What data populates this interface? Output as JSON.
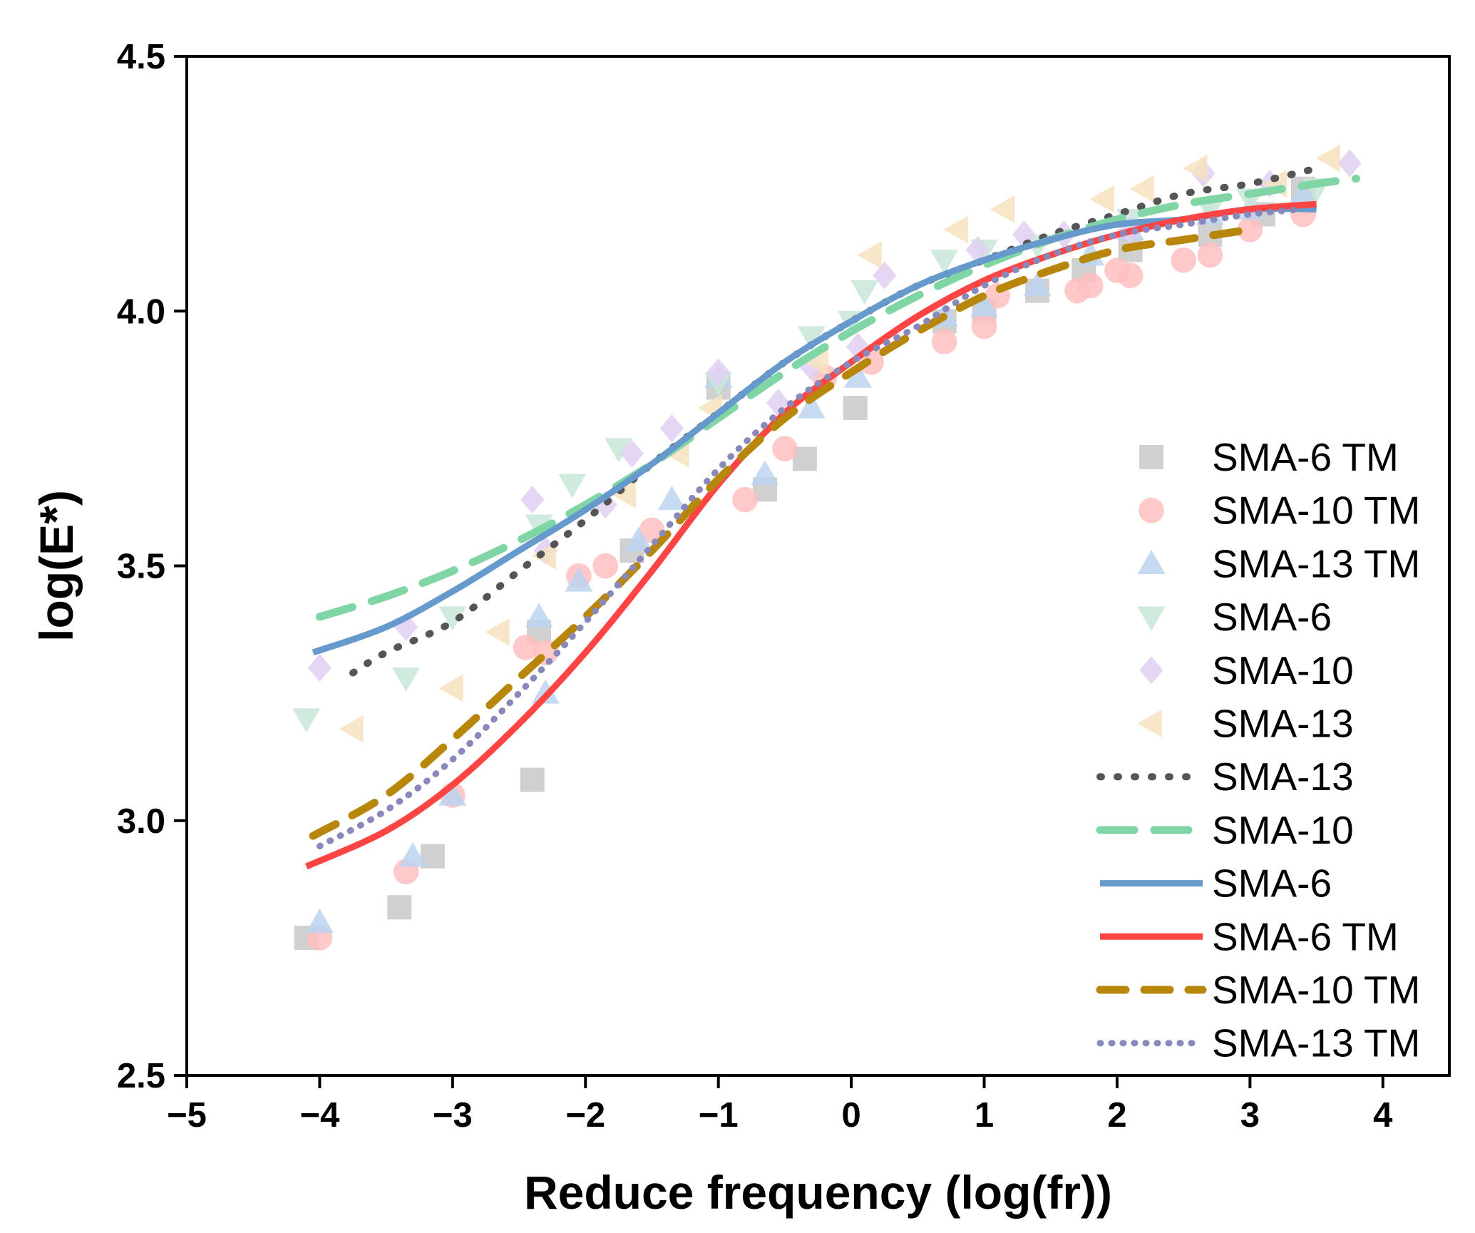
{
  "chart_data": {
    "type": "scatter",
    "title": "",
    "xlabel": "Reduce frequency (log(fr))",
    "ylabel": "log(E*)",
    "xlim": [
      -5,
      4.5
    ],
    "ylim": [
      2.5,
      4.5
    ],
    "xticks": [
      -5,
      -4,
      -3,
      -2,
      -1,
      0,
      1,
      2,
      3,
      4
    ],
    "xtick_labels": [
      "−5",
      "−4",
      "−3",
      "−2",
      "−1",
      "0",
      "1",
      "2",
      "3",
      "4"
    ],
    "yticks": [
      2.5,
      3.0,
      3.5,
      4.0,
      4.5
    ],
    "ytick_labels": [
      "2.5",
      "3.0",
      "3.5",
      "4.0",
      "4.5"
    ],
    "grid": false,
    "legend_position": "right",
    "scatter_series": [
      {
        "name": "SMA-6 TM",
        "marker": "square",
        "color": "#c8c8c8",
        "points": [
          [
            -4.1,
            2.77
          ],
          [
            -3.4,
            2.83
          ],
          [
            -3.15,
            2.93
          ],
          [
            -2.4,
            3.08
          ],
          [
            -2.35,
            3.37
          ],
          [
            -1.65,
            3.53
          ],
          [
            -1.0,
            3.85
          ],
          [
            -0.65,
            3.65
          ],
          [
            -0.35,
            3.71
          ],
          [
            0.03,
            3.81
          ],
          [
            0.7,
            3.98
          ],
          [
            1.0,
            4.0
          ],
          [
            1.4,
            4.04
          ],
          [
            1.75,
            4.08
          ],
          [
            2.1,
            4.12
          ],
          [
            2.7,
            4.15
          ],
          [
            3.1,
            4.19
          ],
          [
            3.4,
            4.24
          ]
        ]
      },
      {
        "name": "SMA-10 TM",
        "marker": "circle",
        "color": "#ffc0c0",
        "points": [
          [
            -4.0,
            2.77
          ],
          [
            -3.35,
            2.9
          ],
          [
            -3.0,
            3.05
          ],
          [
            -2.45,
            3.34
          ],
          [
            -2.3,
            3.33
          ],
          [
            -2.05,
            3.48
          ],
          [
            -1.85,
            3.5
          ],
          [
            -1.5,
            3.57
          ],
          [
            -0.8,
            3.63
          ],
          [
            -0.5,
            3.73
          ],
          [
            -0.2,
            3.87
          ],
          [
            0.15,
            3.9
          ],
          [
            0.7,
            3.94
          ],
          [
            1.0,
            3.97
          ],
          [
            1.1,
            4.03
          ],
          [
            1.7,
            4.04
          ],
          [
            1.8,
            4.05
          ],
          [
            2.0,
            4.08
          ],
          [
            2.1,
            4.07
          ],
          [
            2.5,
            4.1
          ],
          [
            2.7,
            4.11
          ],
          [
            3.0,
            4.16
          ],
          [
            3.4,
            4.19
          ]
        ]
      },
      {
        "name": "SMA-13 TM",
        "marker": "triangle-up",
        "color": "#bcd4f0",
        "points": [
          [
            -4.0,
            2.8
          ],
          [
            -3.3,
            2.93
          ],
          [
            -3.0,
            3.05
          ],
          [
            -2.35,
            3.4
          ],
          [
            -2.3,
            3.25
          ],
          [
            -2.05,
            3.47
          ],
          [
            -1.6,
            3.55
          ],
          [
            -1.35,
            3.63
          ],
          [
            -1.0,
            3.87
          ],
          [
            -0.65,
            3.68
          ],
          [
            -0.3,
            3.81
          ],
          [
            0.05,
            3.87
          ],
          [
            0.7,
            3.99
          ],
          [
            1.0,
            4.01
          ],
          [
            1.4,
            4.05
          ],
          [
            1.8,
            4.11
          ],
          [
            2.1,
            4.16
          ],
          [
            2.7,
            4.19
          ],
          [
            3.0,
            4.2
          ],
          [
            3.4,
            4.23
          ]
        ]
      },
      {
        "name": "SMA-6",
        "marker": "triangle-down",
        "color": "#c8e8d8",
        "points": [
          [
            -4.1,
            3.2
          ],
          [
            -3.35,
            3.28
          ],
          [
            -3.0,
            3.4
          ],
          [
            -2.35,
            3.58
          ],
          [
            -2.1,
            3.66
          ],
          [
            -1.75,
            3.73
          ],
          [
            -1.0,
            3.86
          ],
          [
            -0.3,
            3.95
          ],
          [
            0.0,
            3.98
          ],
          [
            0.1,
            4.04
          ],
          [
            0.7,
            4.1
          ],
          [
            1.0,
            4.12
          ],
          [
            1.4,
            4.13
          ],
          [
            2.1,
            4.18
          ],
          [
            2.7,
            4.2
          ],
          [
            3.0,
            4.22
          ],
          [
            3.5,
            4.24
          ]
        ]
      },
      {
        "name": "SMA-10",
        "marker": "diamond",
        "color": "#e0d0f2",
        "points": [
          [
            -4.0,
            3.3
          ],
          [
            -3.35,
            3.38
          ],
          [
            -2.4,
            3.63
          ],
          [
            -2.3,
            3.53
          ],
          [
            -1.85,
            3.62
          ],
          [
            -1.65,
            3.72
          ],
          [
            -1.35,
            3.77
          ],
          [
            -1.0,
            3.88
          ],
          [
            -0.55,
            3.82
          ],
          [
            -0.3,
            3.89
          ],
          [
            0.05,
            3.93
          ],
          [
            0.25,
            4.07
          ],
          [
            0.95,
            4.12
          ],
          [
            1.3,
            4.15
          ],
          [
            1.6,
            4.15
          ],
          [
            2.1,
            4.16
          ],
          [
            2.65,
            4.27
          ],
          [
            3.15,
            4.25
          ],
          [
            3.75,
            4.29
          ]
        ]
      },
      {
        "name": "SMA-13",
        "marker": "triangle-left",
        "color": "#f7e2c0",
        "points": [
          [
            -3.75,
            3.18
          ],
          [
            -3.0,
            3.26
          ],
          [
            -2.65,
            3.37
          ],
          [
            -2.3,
            3.52
          ],
          [
            -1.7,
            3.64
          ],
          [
            -1.3,
            3.72
          ],
          [
            -1.05,
            3.81
          ],
          [
            -0.25,
            3.9
          ],
          [
            0.15,
            4.11
          ],
          [
            0.8,
            4.16
          ],
          [
            1.15,
            4.2
          ],
          [
            1.9,
            4.22
          ],
          [
            2.2,
            4.24
          ],
          [
            2.6,
            4.28
          ],
          [
            3.2,
            4.25
          ],
          [
            3.6,
            4.3
          ]
        ]
      }
    ],
    "line_series": [
      {
        "name": "SMA-13",
        "style": "dotted",
        "color": "#555555",
        "x": [
          -3.75,
          -3.5,
          -3.0,
          -2.5,
          -2.0,
          -1.5,
          -1.0,
          -0.5,
          0.0,
          0.5,
          1.0,
          1.5,
          2.0,
          2.5,
          3.0,
          3.5
        ],
        "y": [
          3.29,
          3.33,
          3.39,
          3.49,
          3.59,
          3.7,
          3.8,
          3.9,
          3.98,
          4.05,
          4.1,
          4.15,
          4.19,
          4.23,
          4.25,
          4.28
        ]
      },
      {
        "name": "SMA-10",
        "style": "long-dash",
        "color": "#7fd6a4",
        "x": [
          -4.0,
          -3.5,
          -3.0,
          -2.5,
          -2.0,
          -1.5,
          -1.0,
          -0.5,
          0.0,
          0.5,
          1.0,
          1.5,
          2.0,
          2.5,
          3.0,
          3.5,
          3.8
        ],
        "y": [
          3.4,
          3.44,
          3.49,
          3.55,
          3.62,
          3.7,
          3.79,
          3.88,
          3.96,
          4.03,
          4.09,
          4.14,
          4.18,
          4.21,
          4.23,
          4.25,
          4.26
        ]
      },
      {
        "name": "SMA-6",
        "style": "solid",
        "color": "#6699cc",
        "x": [
          -4.05,
          -3.5,
          -3.0,
          -2.5,
          -2.0,
          -1.5,
          -1.0,
          -0.5,
          0.0,
          0.5,
          1.0,
          1.5,
          2.0,
          2.5,
          3.0,
          3.5
        ],
        "y": [
          3.33,
          3.38,
          3.45,
          3.53,
          3.61,
          3.7,
          3.8,
          3.9,
          3.98,
          4.05,
          4.1,
          4.14,
          4.17,
          4.18,
          4.2,
          4.2
        ]
      },
      {
        "name": "SMA-6 TM",
        "style": "solid",
        "color": "#ff4444",
        "x": [
          -4.1,
          -3.5,
          -3.0,
          -2.5,
          -2.0,
          -1.5,
          -1.0,
          -0.5,
          0.0,
          0.5,
          1.0,
          1.5,
          2.0,
          2.5,
          3.0,
          3.5
        ],
        "y": [
          2.91,
          2.98,
          3.07,
          3.19,
          3.33,
          3.49,
          3.66,
          3.8,
          3.9,
          3.99,
          4.06,
          4.11,
          4.15,
          4.18,
          4.2,
          4.21
        ]
      },
      {
        "name": "SMA-10 TM",
        "style": "dashed",
        "color": "#b8860b",
        "x": [
          -4.05,
          -3.5,
          -3.0,
          -2.5,
          -2.0,
          -1.5,
          -1.0,
          -0.5,
          0.0,
          0.5,
          1.0,
          1.5,
          2.0,
          2.5,
          3.0
        ],
        "y": [
          2.97,
          3.05,
          3.16,
          3.28,
          3.4,
          3.53,
          3.67,
          3.79,
          3.88,
          3.96,
          4.03,
          4.08,
          4.12,
          4.14,
          4.16
        ]
      },
      {
        "name": "SMA-13 TM",
        "style": "dotted-round",
        "color": "#8888bb",
        "x": [
          -4.0,
          -3.5,
          -3.0,
          -2.5,
          -2.0,
          -1.5,
          -1.0,
          -0.5,
          0.0,
          0.5,
          1.0,
          1.5,
          2.0,
          2.5,
          3.0,
          3.4
        ],
        "y": [
          2.95,
          3.02,
          3.12,
          3.25,
          3.39,
          3.54,
          3.69,
          3.81,
          3.9,
          3.97,
          4.05,
          4.11,
          4.15,
          4.17,
          4.19,
          4.2
        ]
      }
    ],
    "legend_labels": [
      "SMA-6 TM",
      "SMA-10 TM",
      "SMA-13 TM",
      "SMA-6",
      "SMA-10",
      "SMA-13",
      "SMA-13",
      "SMA-10",
      "SMA-6",
      "SMA-6 TM",
      "SMA-10 TM",
      "SMA-13 TM"
    ]
  }
}
